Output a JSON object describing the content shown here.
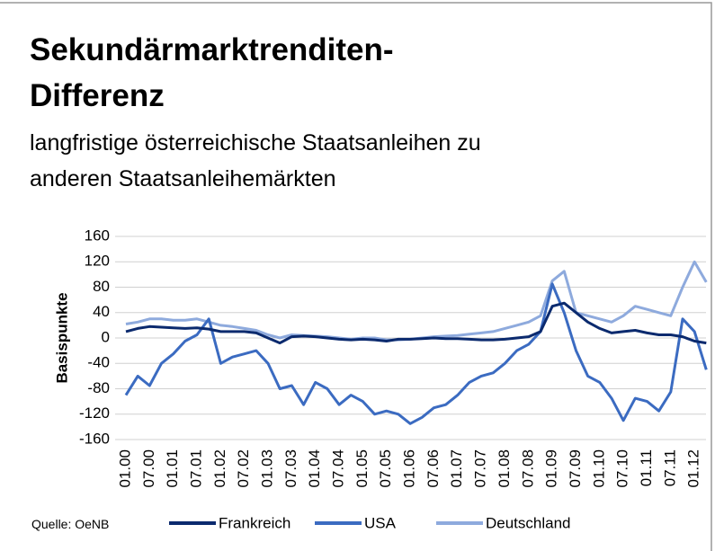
{
  "chart_data": {
    "type": "line",
    "title": [
      "Sekundärmarktrenditen-",
      "Differenz"
    ],
    "subtitle": [
      "langfristige österreichische Staatsanleihen zu",
      "anderen Staatsanleihemärkten"
    ],
    "y_label": "Basispunkte",
    "source": "Quelle: OeNB",
    "categories": [
      "01.00",
      null,
      "07.00",
      null,
      "01.01",
      null,
      "07.01",
      null,
      "01.02",
      null,
      "07.02",
      null,
      "01.03",
      null,
      "07.03",
      null,
      "01.04",
      null,
      "07.04",
      null,
      "01.05",
      null,
      "07.05",
      null,
      "01.06",
      null,
      "07.06",
      null,
      "01.07",
      null,
      "07.07",
      null,
      "01.08",
      null,
      "07.08",
      null,
      "01.09",
      null,
      "07.09",
      null,
      "01.10",
      null,
      "07.10",
      null,
      "01.11",
      null,
      "07.11",
      null,
      "01.12",
      null
    ],
    "series": [
      {
        "name": "Frankreich",
        "color": "#0b2a6e",
        "values": [
          10,
          15,
          18,
          17,
          16,
          15,
          16,
          14,
          10,
          10,
          10,
          8,
          0,
          -8,
          2,
          3,
          2,
          0,
          -2,
          -3,
          -2,
          -3,
          -5,
          -2,
          -2,
          -1,
          0,
          -1,
          -1,
          -2,
          -3,
          -3,
          -2,
          0,
          2,
          10,
          50,
          55,
          40,
          25,
          15,
          8,
          10,
          12,
          8,
          5,
          5,
          2,
          -5,
          -8
        ]
      },
      {
        "name": "USA",
        "color": "#3b6bc1",
        "values": [
          -90,
          -60,
          -75,
          -40,
          -25,
          -5,
          5,
          30,
          -40,
          -30,
          -25,
          -20,
          -40,
          -80,
          -75,
          -105,
          -70,
          -80,
          -105,
          -90,
          -100,
          -120,
          -115,
          -120,
          -135,
          -125,
          -110,
          -105,
          -90,
          -70,
          -60,
          -55,
          -40,
          -20,
          -10,
          10,
          85,
          40,
          -20,
          -60,
          -70,
          -95,
          -130,
          -95,
          -100,
          -115,
          -85,
          30,
          10,
          -50
        ]
      },
      {
        "name": "Deutschland",
        "color": "#8eaadd",
        "values": [
          22,
          25,
          30,
          30,
          28,
          28,
          30,
          25,
          20,
          18,
          15,
          12,
          5,
          0,
          5,
          4,
          3,
          2,
          0,
          -2,
          0,
          0,
          -3,
          -3,
          -2,
          0,
          2,
          3,
          4,
          6,
          8,
          10,
          15,
          20,
          25,
          35,
          90,
          105,
          40,
          35,
          30,
          25,
          35,
          50,
          45,
          40,
          35,
          80,
          120,
          88
        ]
      }
    ],
    "ylim": [
      -160,
      160
    ],
    "yticks": [
      -160,
      -120,
      -80,
      -40,
      0,
      40,
      80,
      120,
      160
    ],
    "grid": true,
    "legend": "bottom"
  }
}
